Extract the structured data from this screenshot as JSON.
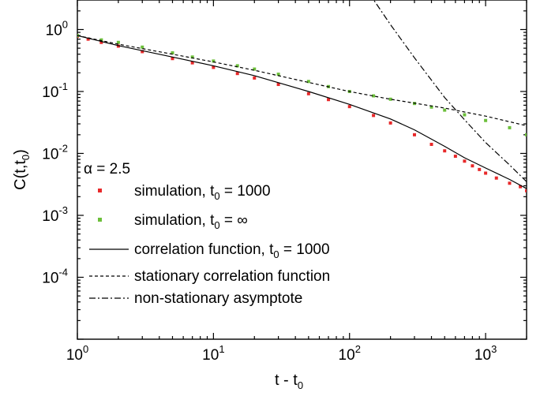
{
  "chart_data": {
    "type": "scatter",
    "title": "",
    "xlabel": "t - t0",
    "ylabel": "C(t,t0)",
    "xscale": "log",
    "yscale": "log",
    "xlim": [
      1,
      2000
    ],
    "ylim": [
      1e-05,
      3
    ],
    "grid": false,
    "legend_placement": "bottom-left",
    "legend_header": "α = 2.5",
    "x_ticks": [
      {
        "base": "10",
        "exp": "0"
      },
      {
        "base": "10",
        "exp": "1"
      },
      {
        "base": "10",
        "exp": "2"
      },
      {
        "base": "10",
        "exp": "3"
      }
    ],
    "y_ticks": [
      {
        "base": "10",
        "exp": "-4"
      },
      {
        "base": "10",
        "exp": "-3"
      },
      {
        "base": "10",
        "exp": "-2"
      },
      {
        "base": "10",
        "exp": "-1"
      },
      {
        "base": "10",
        "exp": "0"
      }
    ],
    "series": [
      {
        "name": "simulation, t0 = 1000",
        "kind": "points",
        "color": "#e8292a",
        "x": [
          1,
          1.2,
          1.5,
          2,
          3,
          5,
          7,
          10,
          15,
          20,
          30,
          50,
          70,
          100,
          150,
          200,
          300,
          400,
          500,
          600,
          700,
          800,
          900,
          1000,
          1200,
          1500,
          1800,
          2000
        ],
        "y": [
          0.78,
          0.7,
          0.62,
          0.54,
          0.44,
          0.34,
          0.29,
          0.245,
          0.195,
          0.165,
          0.13,
          0.092,
          0.074,
          0.057,
          0.041,
          0.031,
          0.02,
          0.014,
          0.011,
          0.009,
          0.0075,
          0.0063,
          0.0055,
          0.0048,
          0.004,
          0.0033,
          0.0029,
          0.0025
        ]
      },
      {
        "name": "simulation, t0 = ∞",
        "kind": "points",
        "color": "#6cbf3a",
        "x": [
          1,
          1.5,
          2,
          3,
          5,
          7,
          10,
          15,
          20,
          30,
          50,
          70,
          100,
          150,
          200,
          300,
          400,
          500,
          700,
          1000,
          1500,
          2000
        ],
        "y": [
          0.8,
          0.68,
          0.62,
          0.52,
          0.42,
          0.36,
          0.31,
          0.26,
          0.23,
          0.19,
          0.145,
          0.12,
          0.1,
          0.085,
          0.075,
          0.064,
          0.056,
          0.05,
          0.042,
          0.034,
          0.026,
          0.02
        ]
      },
      {
        "name": "correlation function, t0 = 1000",
        "kind": "line",
        "dash": "solid",
        "color": "#000000",
        "x": [
          1,
          2,
          5,
          10,
          20,
          50,
          100,
          200,
          300,
          500,
          700,
          1000,
          1500,
          2000
        ],
        "y": [
          0.8,
          0.55,
          0.36,
          0.26,
          0.18,
          0.1,
          0.062,
          0.036,
          0.024,
          0.013,
          0.0085,
          0.0058,
          0.0038,
          0.0027
        ]
      },
      {
        "name": "stationary correlation function",
        "kind": "line",
        "dash": "4 3",
        "color": "#000000",
        "x": [
          1,
          2,
          5,
          10,
          20,
          50,
          100,
          200,
          500,
          1000,
          2000
        ],
        "y": [
          0.8,
          0.58,
          0.4,
          0.3,
          0.22,
          0.14,
          0.1,
          0.075,
          0.054,
          0.04,
          0.028
        ]
      },
      {
        "name": "non-stationary asymptote",
        "kind": "line",
        "dash": "8 3 2 3",
        "color": "#000000",
        "x": [
          140,
          200,
          300,
          500,
          700,
          1000,
          1500,
          2000
        ],
        "y": [
          3.8,
          1.2,
          0.35,
          0.08,
          0.035,
          0.015,
          0.0065,
          0.0035
        ]
      }
    ]
  },
  "legend": {
    "header": "α = 2.5",
    "items": [
      {
        "pre": "simulation, t",
        "sub": "0",
        "post": " = 1000"
      },
      {
        "pre": "simulation, t",
        "sub": "0",
        "post": " = ∞"
      },
      {
        "pre": "correlation function, t",
        "sub": "0",
        "post": " = 1000"
      },
      {
        "pre": "stationary correlation function",
        "sub": "",
        "post": ""
      },
      {
        "pre": "non-stationary asymptote",
        "sub": "",
        "post": ""
      }
    ]
  },
  "axis_labels": {
    "x_pre": "t - t",
    "x_sub": "0",
    "y_pre": "C(t,t",
    "y_sub": "0",
    "y_post": ")"
  }
}
